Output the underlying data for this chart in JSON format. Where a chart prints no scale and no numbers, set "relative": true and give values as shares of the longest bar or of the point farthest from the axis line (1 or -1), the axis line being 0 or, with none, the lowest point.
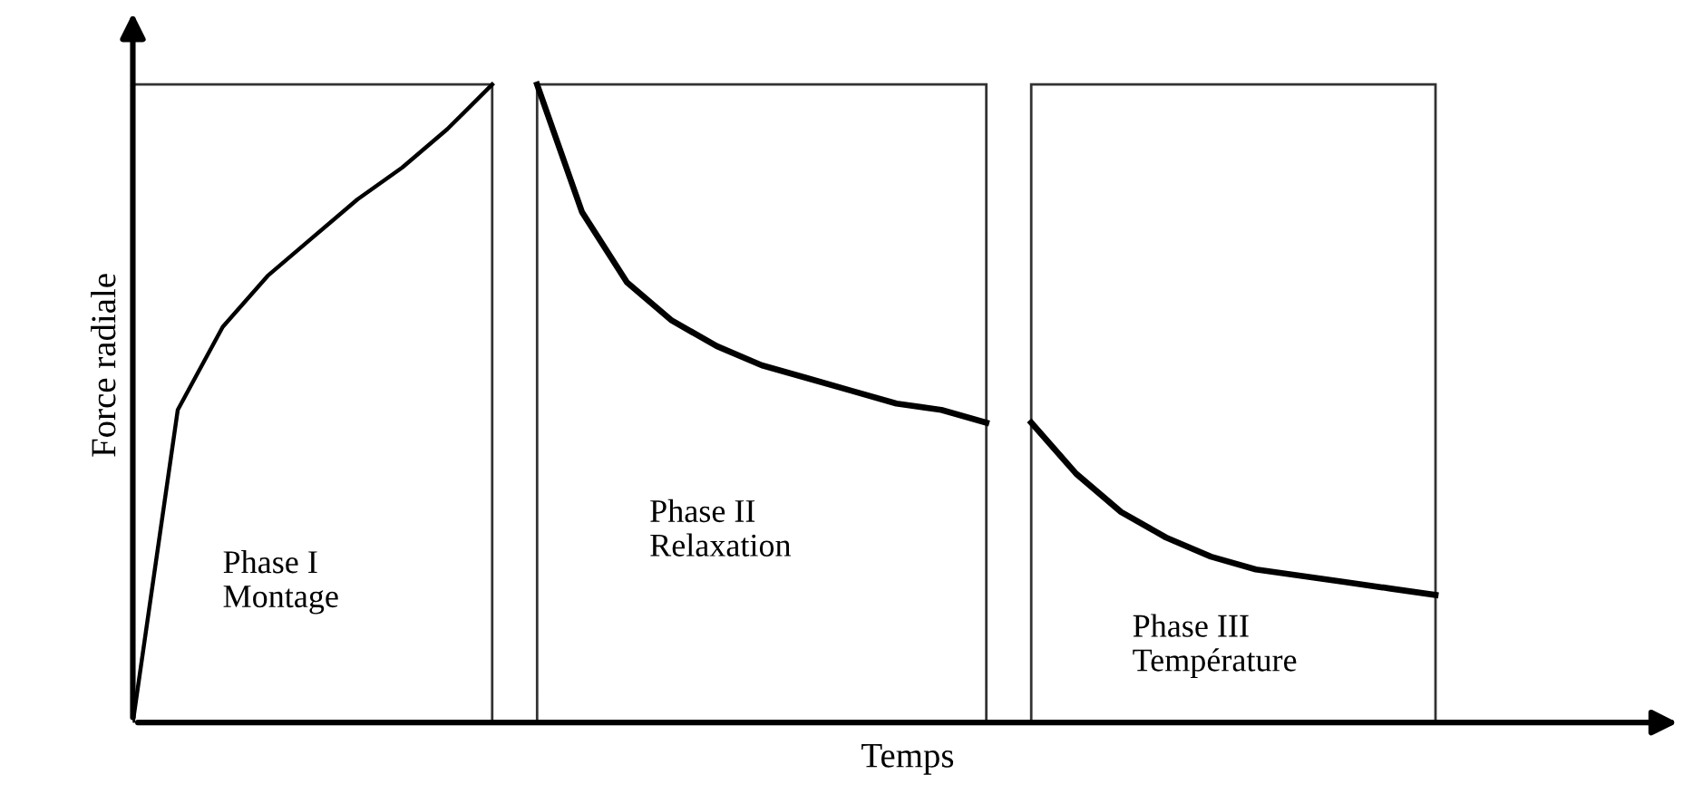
{
  "chart_data": {
    "type": "line",
    "relative": true,
    "xlabel": "Temps",
    "ylabel": "Force radiale",
    "categories": [
      null,
      null,
      null,
      null,
      null,
      null,
      null,
      null,
      null,
      null,
      null,
      null,
      null,
      null,
      null,
      null,
      null,
      null,
      null,
      null,
      null,
      null,
      null,
      null,
      null,
      null,
      null,
      null,
      null,
      null,
      null,
      null,
      null
    ],
    "series": [
      {
        "color": "#000000",
        "values": [
          0,
          0.49,
          0.62,
          0.7,
          0.76,
          0.82,
          0.87,
          0.93,
          1.0,
          null,
          null,
          null,
          null,
          null,
          null,
          null,
          null,
          null,
          null,
          null,
          null,
          null,
          null,
          null,
          null,
          null,
          null,
          null,
          null,
          null,
          null,
          null,
          null
        ]
      },
      {
        "color": "#000000",
        "values": [
          null,
          null,
          null,
          null,
          null,
          null,
          null,
          null,
          null,
          1.0,
          0.8,
          0.69,
          0.63,
          0.59,
          0.56,
          0.54,
          0.52,
          0.5,
          0.49,
          0.47,
          null,
          null,
          null,
          null,
          null,
          null,
          null,
          null,
          null,
          null,
          null,
          null,
          null
        ]
      },
      {
        "color": "#000000",
        "values": [
          null,
          null,
          null,
          null,
          null,
          null,
          null,
          null,
          null,
          null,
          null,
          null,
          null,
          null,
          null,
          null,
          null,
          null,
          null,
          null,
          0.47,
          0.39,
          0.33,
          0.29,
          0.26,
          0.24,
          0.23,
          0.22,
          0.21,
          0.2,
          null,
          null,
          null
        ]
      }
    ],
    "annotations": [
      "Phase I\nMontage",
      "Phase II\nRelaxation",
      "Phase III\nTempérature"
    ],
    "legend": false,
    "marker": "none",
    "line_style": "solid"
  }
}
